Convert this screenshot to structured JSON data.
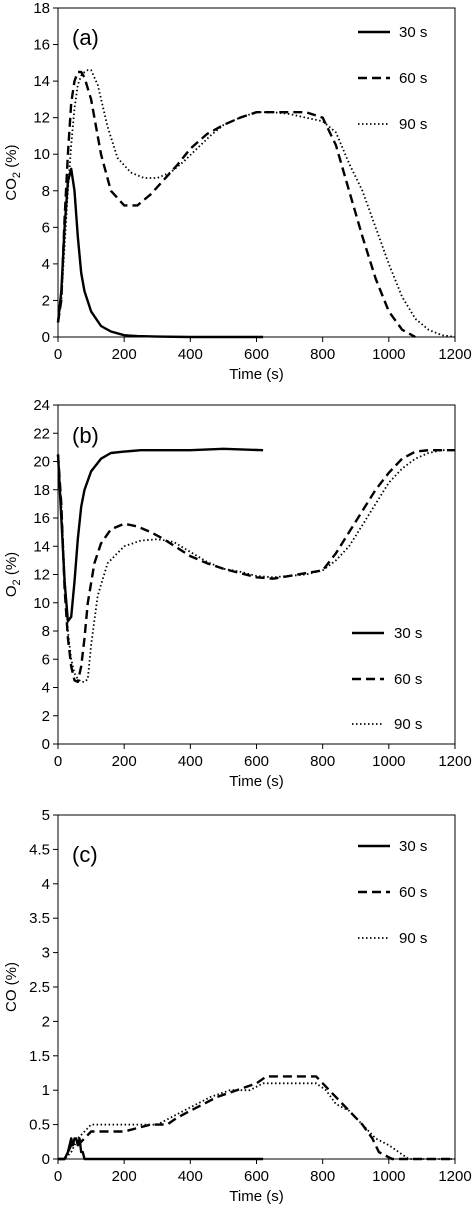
{
  "chart_data": [
    {
      "type": "line",
      "panel_label": "(a)",
      "xlabel": "Time (s)",
      "ylabel": "CO2 (%)",
      "ylabel_main": "CO",
      "ylabel_sub": "2",
      "ylabel_unit": " (%)",
      "xlim": [
        0,
        1200
      ],
      "ylim": [
        0,
        18
      ],
      "xticks": [
        0,
        200,
        400,
        600,
        800,
        1000,
        1200
      ],
      "yticks": [
        0,
        2,
        4,
        6,
        8,
        10,
        12,
        14,
        16,
        18
      ],
      "grid": false,
      "legend_position": "top-right",
      "series": [
        {
          "name": "30 s",
          "style": "solid",
          "x": [
            0,
            10,
            20,
            30,
            40,
            50,
            60,
            70,
            80,
            100,
            130,
            160,
            200,
            240,
            300,
            400,
            620
          ],
          "y": [
            0.8,
            2.5,
            6.0,
            8.5,
            9.2,
            8.0,
            5.5,
            3.5,
            2.5,
            1.4,
            0.6,
            0.3,
            0.1,
            0.05,
            0.02,
            0,
            0
          ]
        },
        {
          "name": "60 s",
          "style": "dashed",
          "x": [
            0,
            10,
            20,
            30,
            40,
            50,
            60,
            70,
            80,
            100,
            130,
            160,
            200,
            240,
            280,
            320,
            360,
            400,
            450,
            500,
            550,
            600,
            650,
            700,
            750,
            800,
            840,
            880,
            920,
            960,
            1000,
            1040,
            1080
          ],
          "y": [
            0.8,
            2.0,
            6.5,
            10.0,
            12.8,
            14.0,
            14.5,
            14.5,
            14.2,
            13.0,
            10.0,
            8.0,
            7.2,
            7.2,
            7.8,
            8.6,
            9.4,
            10.3,
            11.1,
            11.6,
            12.0,
            12.3,
            12.3,
            12.3,
            12.3,
            12.0,
            10.5,
            8.0,
            5.5,
            3.2,
            1.4,
            0.4,
            0
          ]
        },
        {
          "name": "90 s",
          "style": "dotted",
          "x": [
            0,
            10,
            20,
            30,
            40,
            50,
            60,
            70,
            80,
            90,
            100,
            120,
            150,
            180,
            220,
            260,
            300,
            340,
            380,
            420,
            460,
            500,
            550,
            600,
            650,
            700,
            750,
            800,
            840,
            880,
            920,
            960,
            1000,
            1040,
            1080,
            1120,
            1160,
            1200
          ],
          "y": [
            0.8,
            2.0,
            5.0,
            8.0,
            10.5,
            12.5,
            13.8,
            14.3,
            14.5,
            14.6,
            14.6,
            13.8,
            11.5,
            9.8,
            9.0,
            8.7,
            8.7,
            9.0,
            9.6,
            10.3,
            11.0,
            11.6,
            12.0,
            12.3,
            12.3,
            12.2,
            12.0,
            11.8,
            11.2,
            9.5,
            8.0,
            6.0,
            4.0,
            2.2,
            1.0,
            0.4,
            0.1,
            0
          ]
        }
      ]
    },
    {
      "type": "line",
      "panel_label": "(b)",
      "xlabel": "Time (s)",
      "ylabel": "O2 (%)",
      "ylabel_main": "O",
      "ylabel_sub": "2",
      "ylabel_unit": " (%)",
      "xlim": [
        0,
        1200
      ],
      "ylim": [
        0,
        24
      ],
      "xticks": [
        0,
        200,
        400,
        600,
        800,
        1000,
        1200
      ],
      "yticks": [
        0,
        2,
        4,
        6,
        8,
        10,
        12,
        14,
        16,
        18,
        20,
        22,
        24
      ],
      "grid": false,
      "legend_position": "middle-right",
      "series": [
        {
          "name": "30 s",
          "style": "solid",
          "x": [
            0,
            10,
            20,
            30,
            40,
            50,
            60,
            70,
            80,
            100,
            130,
            160,
            200,
            250,
            300,
            400,
            500,
            620
          ],
          "y": [
            20.5,
            16.0,
            11.5,
            8.7,
            9.0,
            11.5,
            14.5,
            16.8,
            18.0,
            19.3,
            20.2,
            20.6,
            20.7,
            20.8,
            20.8,
            20.8,
            20.9,
            20.8
          ]
        },
        {
          "name": "60 s",
          "style": "dashed",
          "x": [
            0,
            10,
            20,
            30,
            40,
            50,
            60,
            70,
            80,
            90,
            110,
            130,
            160,
            200,
            240,
            280,
            320,
            360,
            400,
            450,
            500,
            550,
            600,
            650,
            700,
            750,
            800,
            840,
            880,
            920,
            960,
            1000,
            1040,
            1080,
            1120,
            1160,
            1200
          ],
          "y": [
            20.5,
            17.0,
            11.0,
            7.5,
            5.5,
            4.5,
            4.4,
            5.5,
            7.5,
            10.0,
            12.8,
            14.2,
            15.2,
            15.6,
            15.4,
            15.0,
            14.5,
            13.9,
            13.3,
            12.8,
            12.4,
            12.1,
            11.8,
            11.7,
            11.9,
            12.1,
            12.3,
            13.5,
            15.0,
            16.5,
            18.0,
            19.2,
            20.2,
            20.7,
            20.8,
            20.8,
            20.8
          ]
        },
        {
          "name": "90 s",
          "style": "dotted",
          "x": [
            0,
            10,
            20,
            30,
            40,
            50,
            60,
            70,
            80,
            90,
            100,
            120,
            150,
            200,
            250,
            300,
            350,
            400,
            450,
            500,
            550,
            600,
            650,
            700,
            750,
            800,
            840,
            880,
            920,
            960,
            1000,
            1040,
            1080,
            1120,
            1160,
            1200
          ],
          "y": [
            20.5,
            17.0,
            12.0,
            8.0,
            6.0,
            5.0,
            4.6,
            4.4,
            4.4,
            4.6,
            7.0,
            10.5,
            12.8,
            14.0,
            14.4,
            14.5,
            14.3,
            13.6,
            12.9,
            12.4,
            12.2,
            11.9,
            11.8,
            11.9,
            12.0,
            12.3,
            13.0,
            14.0,
            15.5,
            17.0,
            18.5,
            19.5,
            20.2,
            20.6,
            20.8,
            20.8
          ]
        }
      ]
    },
    {
      "type": "line",
      "panel_label": "(c)",
      "xlabel": "Time (s)",
      "ylabel": "CO (%)",
      "ylabel_main": "CO",
      "ylabel_sub": "",
      "ylabel_unit": " (%)",
      "xlim": [
        0,
        1200
      ],
      "ylim": [
        0,
        5
      ],
      "xticks": [
        0,
        200,
        400,
        600,
        800,
        1000,
        1200
      ],
      "yticks": [
        0,
        0.5,
        1,
        1.5,
        2,
        2.5,
        3,
        3.5,
        4,
        4.5,
        5
      ],
      "grid": false,
      "legend_position": "top-right",
      "series": [
        {
          "name": "30 s",
          "style": "solid",
          "x": [
            0,
            20,
            30,
            35,
            40,
            45,
            50,
            55,
            60,
            65,
            70,
            75,
            80,
            90,
            620
          ],
          "y": [
            0,
            0,
            0.1,
            0.2,
            0.3,
            0.2,
            0.3,
            0.3,
            0.2,
            0.3,
            0.1,
            0.1,
            0,
            0,
            0
          ]
        },
        {
          "name": "60 s",
          "style": "dashed",
          "x": [
            0,
            20,
            30,
            40,
            60,
            80,
            100,
            120,
            200,
            280,
            330,
            360,
            400,
            440,
            480,
            540,
            600,
            630,
            700,
            780,
            800,
            840,
            880,
            920,
            950,
            970,
            990,
            1010,
            1200
          ],
          "y": [
            0,
            0,
            0.1,
            0.2,
            0.2,
            0.3,
            0.4,
            0.4,
            0.4,
            0.5,
            0.5,
            0.6,
            0.7,
            0.8,
            0.9,
            1.0,
            1.1,
            1.2,
            1.2,
            1.2,
            1.1,
            0.9,
            0.7,
            0.5,
            0.3,
            0.1,
            0.05,
            0,
            0
          ]
        },
        {
          "name": "90 s",
          "style": "dotted",
          "x": [
            0,
            20,
            40,
            60,
            80,
            100,
            200,
            300,
            340,
            380,
            420,
            460,
            520,
            580,
            620,
            700,
            780,
            810,
            840,
            880,
            920,
            960,
            1000,
            1030,
            1060,
            1200
          ],
          "y": [
            0,
            0,
            0.1,
            0.3,
            0.4,
            0.5,
            0.5,
            0.5,
            0.6,
            0.7,
            0.8,
            0.9,
            1.0,
            1.0,
            1.1,
            1.1,
            1.1,
            1.0,
            0.8,
            0.7,
            0.5,
            0.3,
            0.2,
            0.1,
            0,
            0
          ]
        }
      ]
    }
  ]
}
